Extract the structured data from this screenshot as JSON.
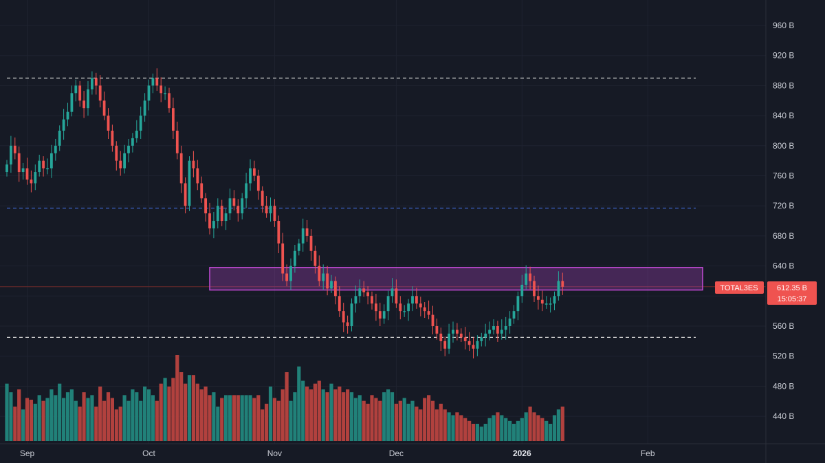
{
  "chart_data": {
    "type": "candlestick",
    "symbol": "TOTAL3ES",
    "last_price": "612.35 B",
    "countdown": "15:05:37",
    "price_unit": "B",
    "y_ticks": [
      "960 B",
      "920 B",
      "880 B",
      "840 B",
      "800 B",
      "760 B",
      "720 B",
      "680 B",
      "640 B",
      "600 B",
      "560 B",
      "520 B",
      "480 B",
      "440 B"
    ],
    "y_tick_values": [
      960,
      920,
      880,
      840,
      800,
      760,
      720,
      680,
      640,
      600,
      560,
      520,
      480,
      440
    ],
    "ylim": [
      415,
      985
    ],
    "x_ticks": [
      {
        "label": "Sep",
        "bar": 5,
        "bold": false
      },
      {
        "label": "Oct",
        "bar": 35,
        "bold": false
      },
      {
        "label": "Nov",
        "bar": 66,
        "bold": false
      },
      {
        "label": "Dec",
        "bar": 96,
        "bold": false
      },
      {
        "label": "2026",
        "bar": 127,
        "bold": true
      },
      {
        "label": "Feb",
        "bar": 158,
        "bold": false
      }
    ],
    "horizontal_lines": [
      {
        "value": 890,
        "style": "dashed",
        "color": "#d6d6d6"
      },
      {
        "value": 717,
        "style": "dashed",
        "color": "#3f64c8"
      },
      {
        "value": 545,
        "style": "dashed",
        "color": "#d6d6d6"
      },
      {
        "value": 612.35,
        "style": "solid",
        "color": "#6b2a2a"
      }
    ],
    "zone": {
      "from_bar": 50,
      "to_bar": 170,
      "low": 608,
      "high": 638,
      "color": "#c34bd6"
    },
    "colors": {
      "up": "#26a69a",
      "down": "#ef5350",
      "tag_bg": "#ef5350",
      "background": "#161a25"
    },
    "closes": [
      775,
      800,
      790,
      765,
      770,
      755,
      750,
      765,
      780,
      770,
      770,
      790,
      800,
      820,
      835,
      845,
      870,
      880,
      860,
      850,
      875,
      890,
      880,
      860,
      840,
      820,
      800,
      780,
      770,
      790,
      800,
      810,
      820,
      840,
      860,
      880,
      890,
      880,
      870,
      870,
      850,
      820,
      790,
      750,
      720,
      780,
      770,
      750,
      730,
      710,
      690,
      700,
      720,
      700,
      710,
      730,
      720,
      710,
      730,
      750,
      770,
      760,
      740,
      720,
      710,
      720,
      700,
      670,
      630,
      620,
      640,
      660,
      670,
      690,
      680,
      660,
      640,
      620,
      630,
      610,
      620,
      600,
      580,
      565,
      560,
      590,
      600,
      610,
      605,
      600,
      590,
      580,
      570,
      580,
      600,
      610,
      590,
      580,
      580,
      590,
      600,
      590,
      585,
      580,
      575,
      560,
      550,
      540,
      530,
      550,
      555,
      550,
      545,
      540,
      535,
      530,
      540,
      545,
      550,
      555,
      560,
      550,
      555,
      560,
      570,
      580,
      600,
      615,
      630,
      620,
      600,
      595,
      590,
      590,
      590,
      600,
      620,
      612.35
    ],
    "volumes": [
      100,
      85,
      60,
      90,
      55,
      75,
      72,
      65,
      80,
      70,
      75,
      90,
      80,
      100,
      75,
      85,
      90,
      70,
      60,
      85,
      75,
      80,
      60,
      95,
      70,
      85,
      75,
      55,
      60,
      80,
      70,
      90,
      85,
      70,
      95,
      90,
      80,
      70,
      100,
      110,
      95,
      110,
      150,
      120,
      100,
      115,
      115,
      100,
      90,
      95,
      80,
      85,
      60,
      75,
      80,
      80,
      80,
      80,
      80,
      80,
      80,
      75,
      80,
      55,
      65,
      95,
      75,
      70,
      90,
      120,
      70,
      85,
      130,
      105,
      95,
      90,
      100,
      105,
      90,
      85,
      100,
      90,
      95,
      85,
      90,
      85,
      75,
      80,
      70,
      65,
      80,
      75,
      70,
      85,
      90,
      85,
      65,
      70,
      75,
      65,
      70,
      60,
      55,
      75,
      80,
      70,
      55,
      65,
      55,
      50,
      45,
      50,
      45,
      40,
      35,
      30,
      30,
      25,
      30,
      40,
      45,
      50,
      45,
      40,
      35,
      30,
      35,
      40,
      50,
      60,
      50,
      45,
      40,
      35,
      30,
      45,
      55,
      60
    ]
  }
}
